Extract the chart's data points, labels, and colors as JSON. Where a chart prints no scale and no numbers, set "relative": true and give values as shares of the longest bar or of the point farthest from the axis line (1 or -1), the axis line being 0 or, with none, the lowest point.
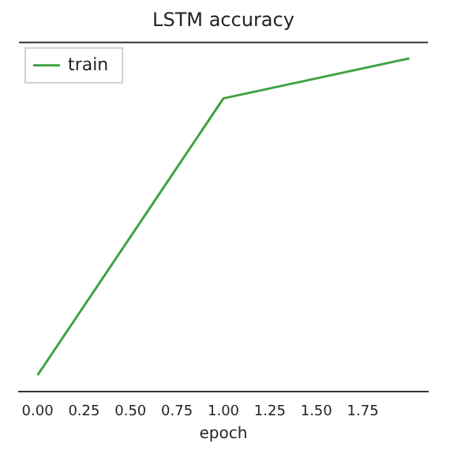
{
  "chart_data": {
    "type": "line",
    "title": "LSTM accuracy",
    "xlabel": "epoch",
    "x": [
      0,
      1,
      2
    ],
    "relative": true,
    "series": [
      {
        "name": "train",
        "color": "#3fa23f",
        "values": [
          0.05,
          0.88,
          1
        ]
      }
    ],
    "xlim": [
      -0.1,
      2.1
    ],
    "xticks": [
      {
        "value": 0,
        "label": "0.00"
      },
      {
        "value": 0.25,
        "label": "0.25"
      },
      {
        "value": 0.5,
        "label": "0.50"
      },
      {
        "value": 0.75,
        "label": "0.75"
      },
      {
        "value": 1,
        "label": "1.00"
      },
      {
        "value": 1.25,
        "label": "1.25"
      },
      {
        "value": 1.5,
        "label": "1.50"
      },
      {
        "value": 1.75,
        "label": "1.75"
      }
    ],
    "legend": "top left",
    "grid": false,
    "marker": "none",
    "line_style": "solid"
  }
}
